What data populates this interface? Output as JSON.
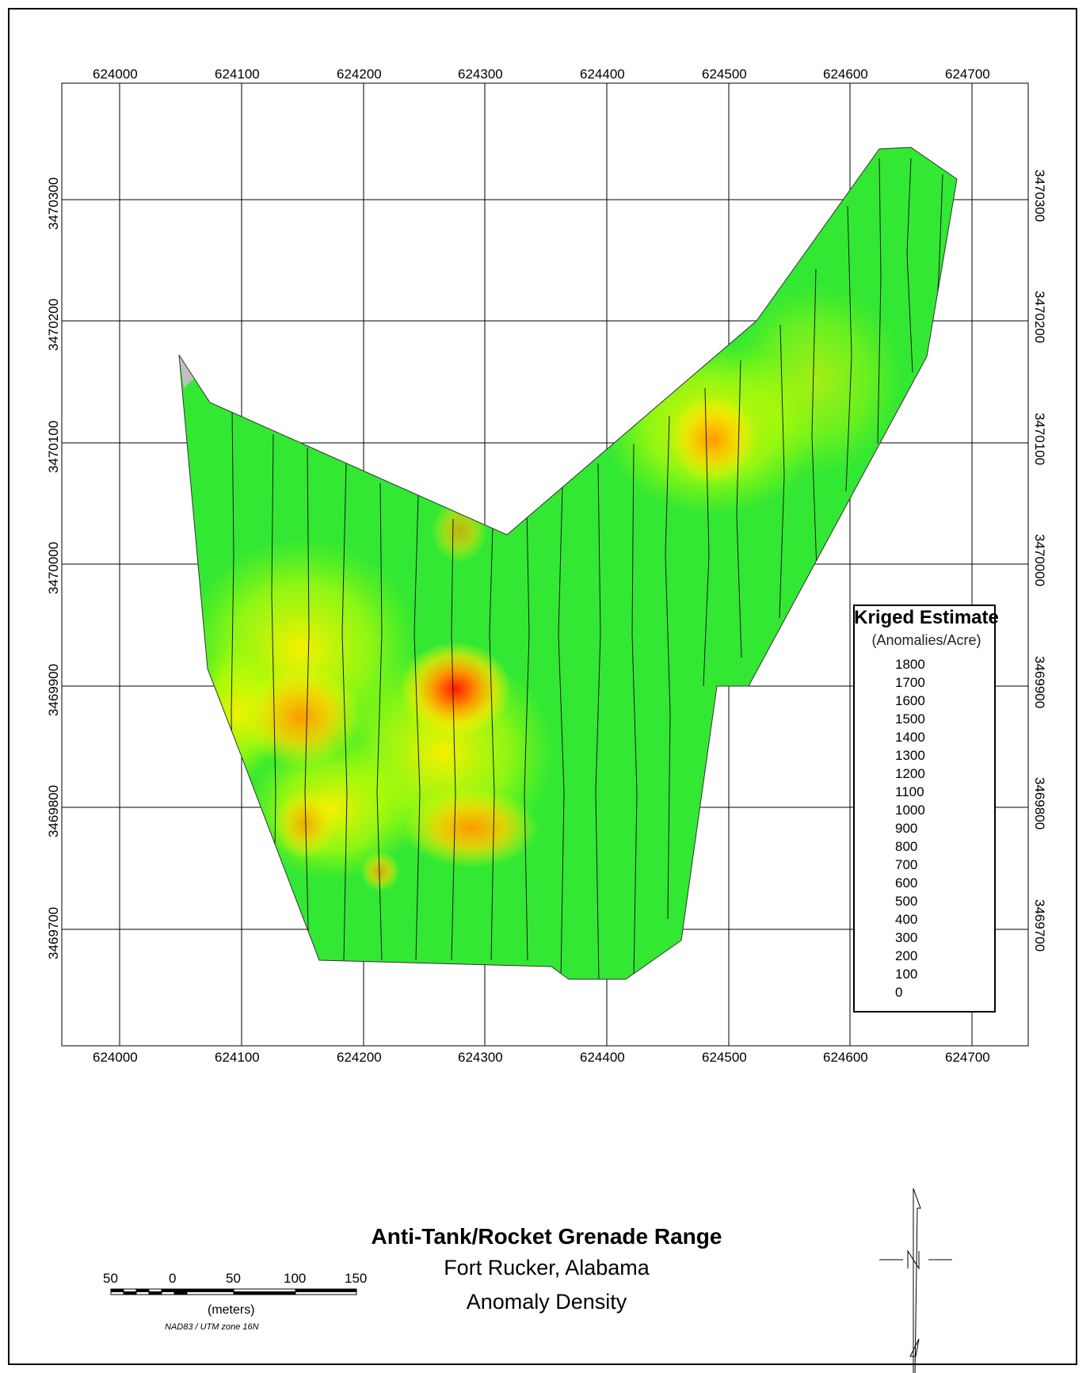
{
  "map": {
    "title": "Anti-Tank/Rocket Grenade Range",
    "subtitle_location": "Fort Rucker, Alabama",
    "subtitle_theme": "Anomaly Density"
  },
  "axes": {
    "x_ticks": [
      "624000",
      "624100",
      "624200",
      "624300",
      "624400",
      "624500",
      "624600",
      "624700"
    ],
    "y_ticks": [
      "3470300",
      "3470200",
      "3470100",
      "3470000",
      "3469900",
      "3469800",
      "3469700"
    ]
  },
  "legend": {
    "title": "Kriged Estimate",
    "units": "(Anomalies/Acre)",
    "labels": [
      "1800",
      "1700",
      "1600",
      "1500",
      "1400",
      "1300",
      "1200",
      "1100",
      "1000",
      "900",
      "800",
      "700",
      "600",
      "500",
      "400",
      "300",
      "200",
      "100",
      "0"
    ],
    "color_stops": [
      "#ff0000",
      "#ff6a00",
      "#ffb000",
      "#ffff00",
      "#9cff00",
      "#00ff00"
    ]
  },
  "scale_bar": {
    "labels": [
      "50",
      "0",
      "50",
      "100",
      "150"
    ],
    "units": "(meters)",
    "projection": "NAD83 / UTM zone 16N"
  },
  "north_arrow": {
    "label": "N"
  },
  "colors": {
    "boundary_fill_base": "#33e833",
    "hot": "#ff2000",
    "warm": "#f6c800"
  }
}
